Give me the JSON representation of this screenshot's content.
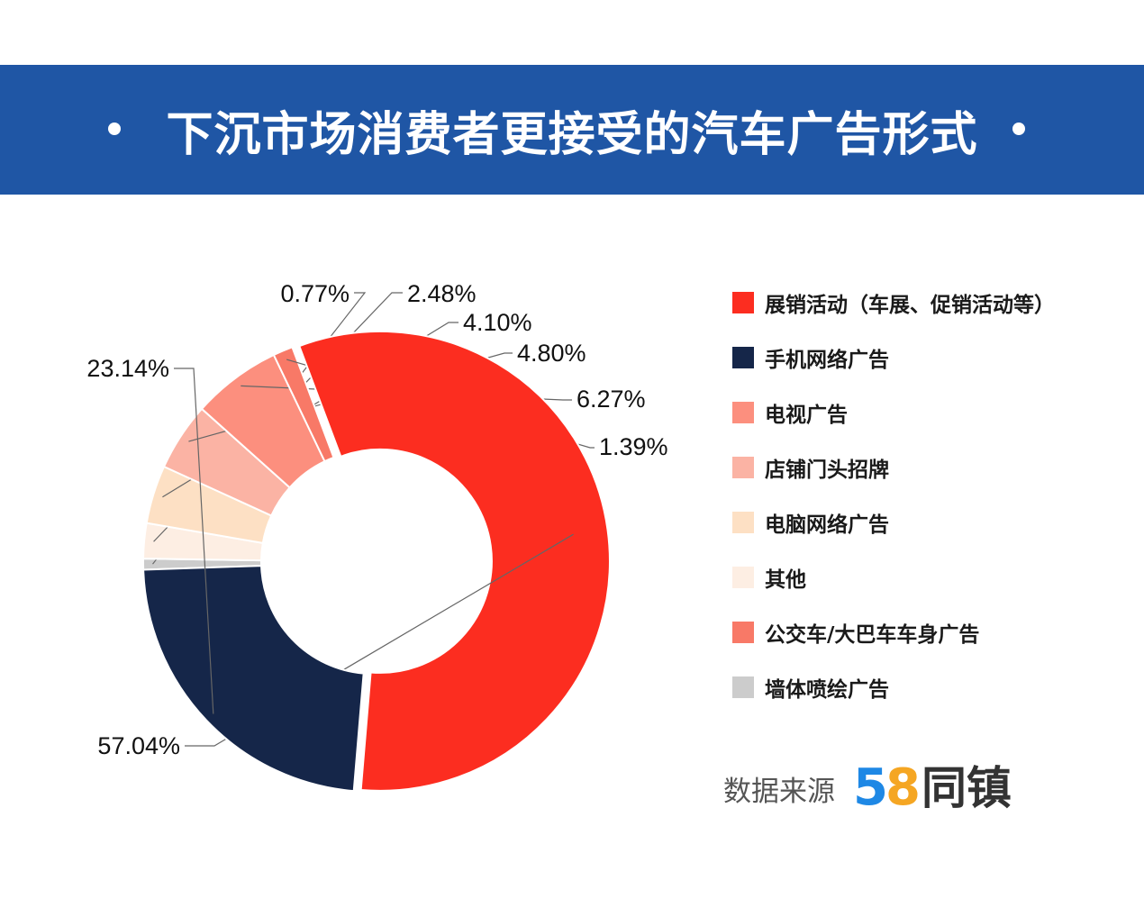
{
  "header": {
    "title": "下沉市场消费者更接受的汽车广告形式"
  },
  "chart_data": {
    "type": "pie",
    "donut": true,
    "slices": [
      {
        "label": "墙体喷绘广告",
        "value": 0.77,
        "display": "0.77%",
        "color": "#cccccc"
      },
      {
        "label": "其他",
        "value": 2.48,
        "display": "2.48%",
        "color": "#fdeee3"
      },
      {
        "label": "电脑网络广告",
        "value": 4.1,
        "display": "4.10%",
        "color": "#fde0c4"
      },
      {
        "label": "店铺门头招牌",
        "value": 4.8,
        "display": "4.80%",
        "color": "#fbb3a4"
      },
      {
        "label": "电视广告",
        "value": 6.27,
        "display": "6.27%",
        "color": "#fc8f7e"
      },
      {
        "label": "公交车/大巴车车身广告",
        "value": 1.39,
        "display": "1.39%",
        "color": "#f87967"
      },
      {
        "label": "展销活动（车展、促销活动等）",
        "value": 57.04,
        "display": "57.04%",
        "color": "#fc2d20",
        "exploded": true
      },
      {
        "label": "手机网络广告",
        "value": 23.14,
        "display": "23.14%",
        "color": "#152649"
      }
    ],
    "legend": {
      "position": "right",
      "entries": [
        {
          "label": "展销活动（车展、促销活动等）",
          "color": "#fc2d20"
        },
        {
          "label": "手机网络广告",
          "color": "#152649"
        },
        {
          "label": "电视广告",
          "color": "#fc8f7e"
        },
        {
          "label": "店铺门头招牌",
          "color": "#fbb3a4"
        },
        {
          "label": "电脑网络广告",
          "color": "#fde0c4"
        },
        {
          "label": "其他",
          "color": "#fdeee3"
        },
        {
          "label": "公交车/大巴车车身广告",
          "color": "#f87967"
        },
        {
          "label": "墙体喷绘广告",
          "color": "#cccccc"
        }
      ]
    }
  },
  "source": {
    "label": "数据来源",
    "logo_digit_5": "5",
    "logo_digit_8": "8",
    "logo_text": "同镇"
  }
}
